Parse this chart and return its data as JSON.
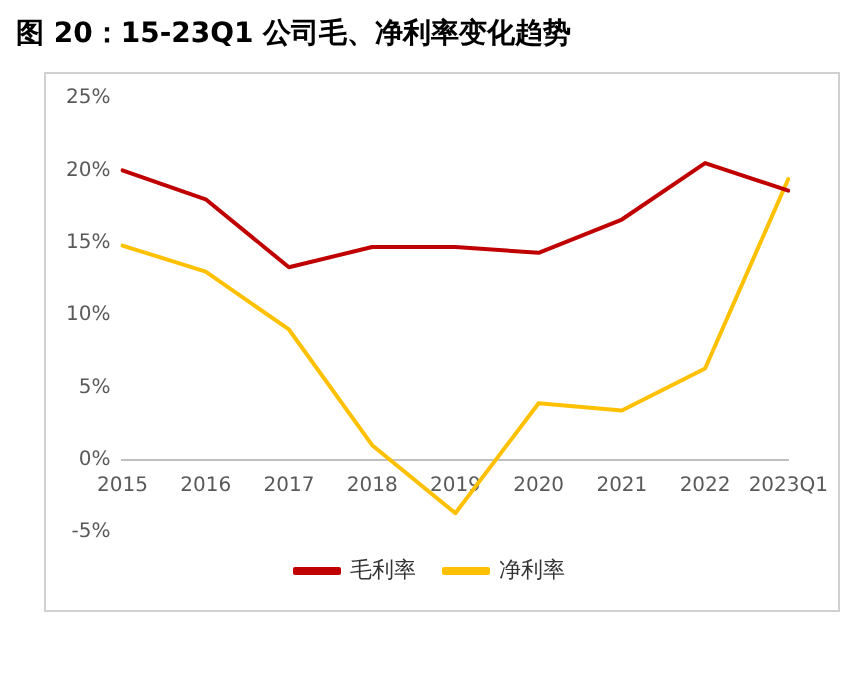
{
  "chart_data": {
    "type": "line",
    "title": "图 20：15-23Q1 公司毛、净利率变化趋势",
    "categories": [
      "2015",
      "2016",
      "2017",
      "2018",
      "2019",
      "2020",
      "2021",
      "2022",
      "2023Q1"
    ],
    "series": [
      {
        "name": "毛利率",
        "color": "#c00000",
        "values": [
          20.0,
          18.0,
          13.3,
          14.7,
          14.7,
          14.3,
          16.6,
          20.5,
          18.6
        ]
      },
      {
        "name": "净利率",
        "color": "#ffc000",
        "values": [
          14.8,
          13.0,
          9.0,
          1.0,
          -3.7,
          3.9,
          3.4,
          6.3,
          19.4
        ]
      }
    ],
    "ylim": [
      -5,
      25
    ],
    "yticks": [
      {
        "value": -5,
        "label": "-5%"
      },
      {
        "value": 0,
        "label": "0%"
      },
      {
        "value": 5,
        "label": "5%"
      },
      {
        "value": 10,
        "label": "10%"
      },
      {
        "value": 15,
        "label": "15%"
      },
      {
        "value": 20,
        "label": "20%"
      },
      {
        "value": 25,
        "label": "25%"
      }
    ],
    "grid": false,
    "legend": "bottom",
    "marker": "none",
    "line_style": "solid"
  }
}
